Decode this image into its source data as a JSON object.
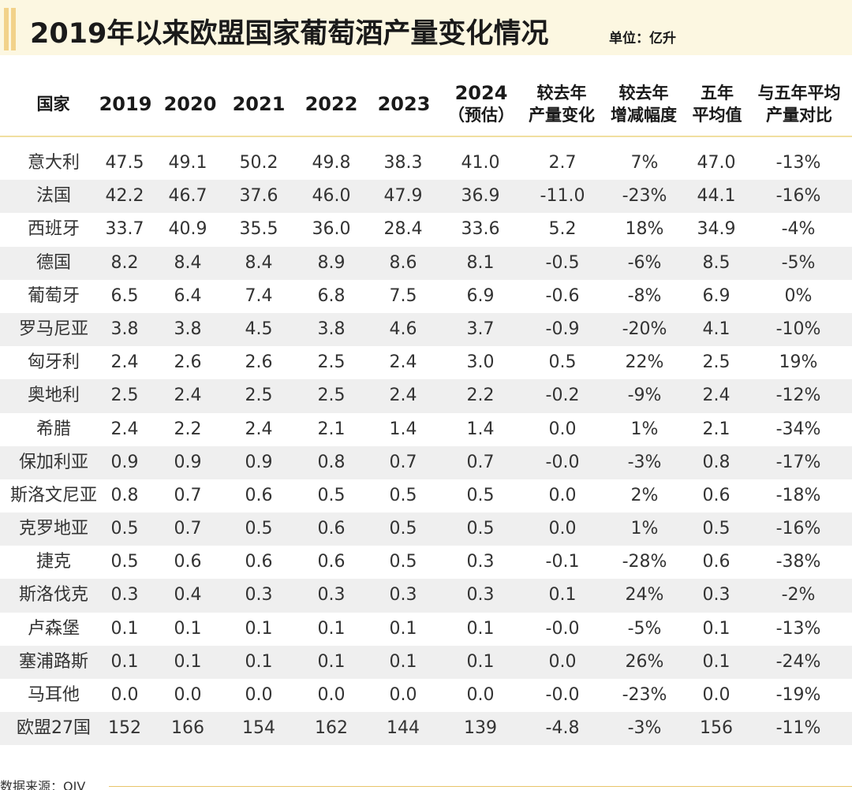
{
  "title": "2019年以来欧盟国家葡萄酒产量变化情况",
  "unit": "单位：亿升",
  "headers": {
    "country": "国家",
    "y2019": "2019",
    "y2020": "2020",
    "y2021": "2021",
    "y2022": "2022",
    "y2023": "2023",
    "y2024_l1": "2024",
    "y2024_l2": "（预估）",
    "chg_l1": "较去年",
    "chg_l2": "产量变化",
    "pct_l1": "较去年",
    "pct_l2": "增减幅度",
    "avg_l1": "五年",
    "avg_l2": "平均值",
    "cmp_l1": "与五年平均",
    "cmp_l2": "产量对比"
  },
  "rows": [
    [
      "意大利",
      "47.5",
      "49.1",
      "50.2",
      "49.8",
      "38.3",
      "41.0",
      "2.7",
      "7%",
      "47.0",
      "-13%"
    ],
    [
      "法国",
      "42.2",
      "46.7",
      "37.6",
      "46.0",
      "47.9",
      "36.9",
      "-11.0",
      "-23%",
      "44.1",
      "-16%"
    ],
    [
      "西班牙",
      "33.7",
      "40.9",
      "35.5",
      "36.0",
      "28.4",
      "33.6",
      "5.2",
      "18%",
      "34.9",
      "-4%"
    ],
    [
      "德国",
      "8.2",
      "8.4",
      "8.4",
      "8.9",
      "8.6",
      "8.1",
      "-0.5",
      "-6%",
      "8.5",
      "-5%"
    ],
    [
      "葡萄牙",
      "6.5",
      "6.4",
      "7.4",
      "6.8",
      "7.5",
      "6.9",
      "-0.6",
      "-8%",
      "6.9",
      "0%"
    ],
    [
      "罗马尼亚",
      "3.8",
      "3.8",
      "4.5",
      "3.8",
      "4.6",
      "3.7",
      "-0.9",
      "-20%",
      "4.1",
      "-10%"
    ],
    [
      "匈牙利",
      "2.4",
      "2.6",
      "2.6",
      "2.5",
      "2.4",
      "3.0",
      "0.5",
      "22%",
      "2.5",
      "19%"
    ],
    [
      "奥地利",
      "2.5",
      "2.4",
      "2.5",
      "2.5",
      "2.4",
      "2.2",
      "-0.2",
      "-9%",
      "2.4",
      "-12%"
    ],
    [
      "希腊",
      "2.4",
      "2.2",
      "2.4",
      "2.1",
      "1.4",
      "1.4",
      "0.0",
      "1%",
      "2.1",
      "-34%"
    ],
    [
      "保加利亚",
      "0.9",
      "0.9",
      "0.9",
      "0.8",
      "0.7",
      "0.7",
      "-0.0",
      "-3%",
      "0.8",
      "-17%"
    ],
    [
      "斯洛文尼亚",
      "0.8",
      "0.7",
      "0.6",
      "0.5",
      "0.5",
      "0.5",
      "0.0",
      "2%",
      "0.6",
      "-18%"
    ],
    [
      "克罗地亚",
      "0.5",
      "0.7",
      "0.5",
      "0.6",
      "0.5",
      "0.5",
      "0.0",
      "1%",
      "0.5",
      "-16%"
    ],
    [
      "捷克",
      "0.5",
      "0.6",
      "0.6",
      "0.6",
      "0.5",
      "0.3",
      "-0.1",
      "-28%",
      "0.6",
      "-38%"
    ],
    [
      "斯洛伐克",
      "0.3",
      "0.4",
      "0.3",
      "0.3",
      "0.3",
      "0.3",
      "0.1",
      "24%",
      "0.3",
      "-2%"
    ],
    [
      "卢森堡",
      "0.1",
      "0.1",
      "0.1",
      "0.1",
      "0.1",
      "0.1",
      "-0.0",
      "-5%",
      "0.1",
      "-13%"
    ],
    [
      "塞浦路斯",
      "0.1",
      "0.1",
      "0.1",
      "0.1",
      "0.1",
      "0.1",
      "0.0",
      "26%",
      "0.1",
      "-24%"
    ],
    [
      "马耳他",
      "0.0",
      "0.0",
      "0.0",
      "0.0",
      "0.0",
      "0.0",
      "-0.0",
      "-23%",
      "0.0",
      "-19%"
    ],
    [
      "欧盟27国",
      "152",
      "166",
      "154",
      "162",
      "144",
      "139",
      "-4.8",
      "-3%",
      "156",
      "-11%"
    ]
  ],
  "source": "数据来源：OIV",
  "colors": {
    "banner_bg": "#fcf7e1",
    "accent": "#f2d28a",
    "row_shade": "#efefef"
  }
}
